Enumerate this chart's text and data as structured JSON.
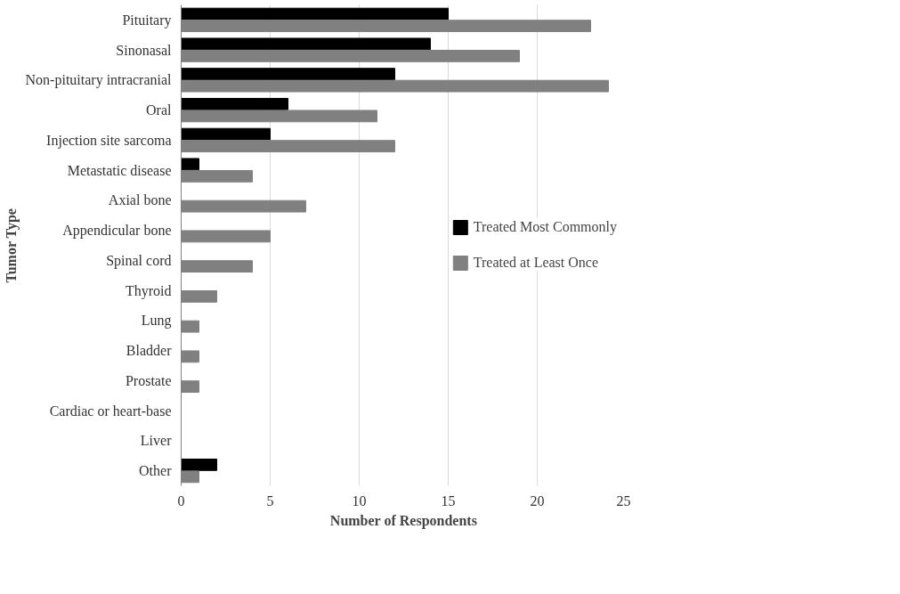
{
  "chart_data": {
    "type": "bar",
    "orientation": "horizontal",
    "xlabel": "Number of Respondents",
    "ylabel": "Tumor Type",
    "categories": [
      "Pituitary",
      "Sinonasal",
      "Non-pituitary intracranial",
      "Oral",
      "Injection site sarcoma",
      "Metastatic disease",
      "Axial bone",
      "Appendicular bone",
      "Spinal cord",
      "Thyroid",
      "Lung",
      "Bladder",
      "Prostate",
      "Cardiac or heart-base",
      "Liver",
      "Other"
    ],
    "series": [
      {
        "name": "Treated Most Commonly",
        "color": "#000000",
        "values": [
          15,
          14,
          12,
          6,
          5,
          1,
          0,
          0,
          0,
          0,
          0,
          0,
          0,
          0,
          0,
          2
        ]
      },
      {
        "name": "Treated at Least Once",
        "color": "#808080",
        "values": [
          23,
          19,
          24,
          11,
          12,
          4,
          7,
          5,
          4,
          2,
          1,
          1,
          1,
          0,
          0,
          1
        ]
      }
    ],
    "xlim": [
      0,
      25
    ],
    "xticks": [
      0,
      5,
      10,
      15,
      20,
      25
    ],
    "grid": "x",
    "legend": "right"
  }
}
